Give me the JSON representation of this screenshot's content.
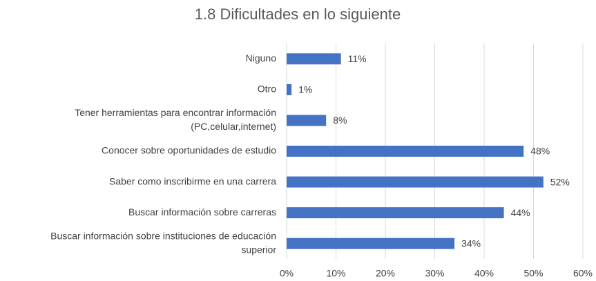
{
  "chart_data": {
    "type": "bar",
    "orientation": "horizontal",
    "title": "1.8 Dificultades en lo siguiente",
    "categories": [
      "Niguno",
      "Otro",
      [
        "Tener herramientas para encontrar información",
        "(PC,celular,internet)"
      ],
      "Conocer sobre oportunidades de estudio",
      "Saber como inscribirme en una carrera",
      "Buscar información sobre carreras",
      [
        "Buscar información sobre instituciones de educación",
        "superior"
      ]
    ],
    "values": [
      11,
      1,
      8,
      48,
      52,
      44,
      34
    ],
    "value_labels": [
      "11%",
      "1%",
      "8%",
      "48%",
      "52%",
      "44%",
      "34%"
    ],
    "color": "#4472c4",
    "xlim": [
      0,
      60
    ],
    "xticks": [
      {
        "value": 0,
        "label": "0%"
      },
      {
        "value": 10,
        "label": "10%"
      },
      {
        "value": 20,
        "label": "20%"
      },
      {
        "value": 30,
        "label": "30%"
      },
      {
        "value": 40,
        "label": "40%"
      },
      {
        "value": 50,
        "label": "50%"
      },
      {
        "value": 60,
        "label": "60%"
      }
    ],
    "grid": true
  }
}
